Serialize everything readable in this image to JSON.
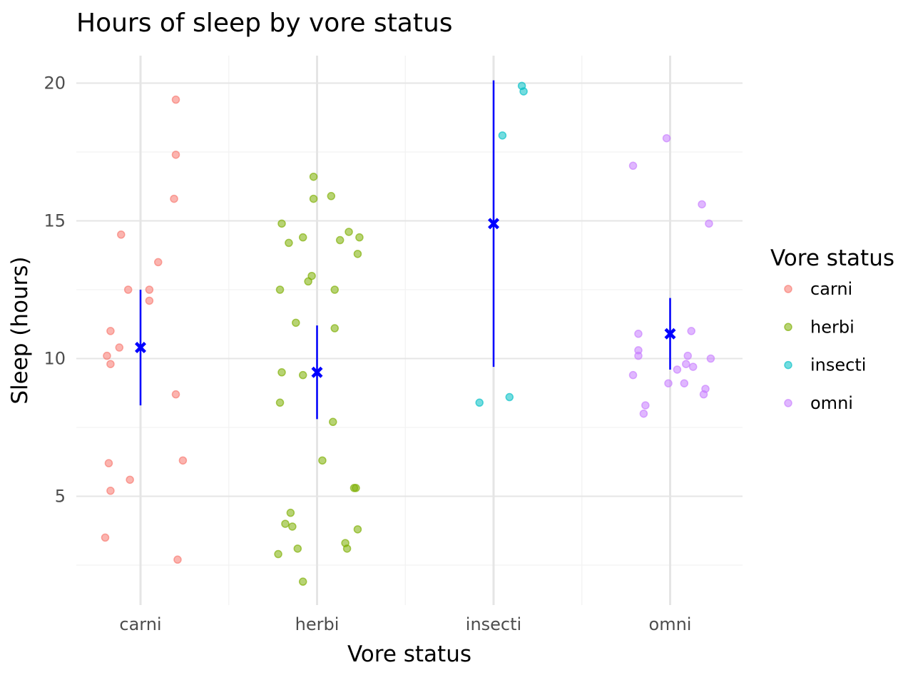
{
  "chart_data": {
    "type": "scatter",
    "title": "Hours of sleep by vore status",
    "xlabel": "Vore status",
    "ylabel": "Sleep (hours)",
    "categories": [
      "carni",
      "herbi",
      "insecti",
      "omni"
    ],
    "ylim": [
      1.0,
      21.0
    ],
    "yticks": [
      5,
      10,
      15,
      20
    ],
    "grid": true,
    "legend": {
      "title": "Vore status",
      "placement": "right",
      "entries": [
        "carni",
        "herbi",
        "insecti",
        "omni"
      ]
    },
    "colors": {
      "carni": "#f8766d",
      "herbi": "#7cae00",
      "insecti": "#00bfc4",
      "omni": "#c77cff",
      "summary": "#0000ff"
    },
    "series": [
      {
        "name": "carni",
        "points": [
          {
            "x": 0.2,
            "y": 19.4
          },
          {
            "x": 0.2,
            "y": 17.4
          },
          {
            "x": 0.19,
            "y": 15.8
          },
          {
            "x": -0.11,
            "y": 14.5
          },
          {
            "x": 0.1,
            "y": 13.5
          },
          {
            "x": -0.07,
            "y": 12.5
          },
          {
            "x": 0.05,
            "y": 12.5
          },
          {
            "x": 0.05,
            "y": 12.1
          },
          {
            "x": -0.17,
            "y": 11.0
          },
          {
            "x": -0.12,
            "y": 10.4
          },
          {
            "x": -0.19,
            "y": 10.1
          },
          {
            "x": -0.17,
            "y": 9.8
          },
          {
            "x": 0.2,
            "y": 8.7
          },
          {
            "x": -0.18,
            "y": 6.2
          },
          {
            "x": 0.24,
            "y": 6.3
          },
          {
            "x": -0.06,
            "y": 5.6
          },
          {
            "x": -0.17,
            "y": 5.2
          },
          {
            "x": -0.2,
            "y": 3.5
          },
          {
            "x": 0.21,
            "y": 2.7
          }
        ]
      },
      {
        "name": "herbi",
        "points": [
          {
            "x": -0.02,
            "y": 16.6
          },
          {
            "x": 0.08,
            "y": 15.9
          },
          {
            "x": -0.02,
            "y": 15.8
          },
          {
            "x": -0.2,
            "y": 14.9
          },
          {
            "x": 0.18,
            "y": 14.6
          },
          {
            "x": -0.08,
            "y": 14.4
          },
          {
            "x": 0.24,
            "y": 14.4
          },
          {
            "x": 0.13,
            "y": 14.3
          },
          {
            "x": -0.16,
            "y": 14.2
          },
          {
            "x": 0.23,
            "y": 13.8
          },
          {
            "x": -0.03,
            "y": 13.0
          },
          {
            "x": -0.05,
            "y": 12.8
          },
          {
            "x": -0.21,
            "y": 12.5
          },
          {
            "x": 0.1,
            "y": 12.5
          },
          {
            "x": -0.12,
            "y": 11.3
          },
          {
            "x": 0.1,
            "y": 11.1
          },
          {
            "x": -0.2,
            "y": 9.5
          },
          {
            "x": -0.08,
            "y": 9.4
          },
          {
            "x": -0.21,
            "y": 8.4
          },
          {
            "x": 0.09,
            "y": 7.7
          },
          {
            "x": 0.03,
            "y": 6.3
          },
          {
            "x": 0.21,
            "y": 5.3
          },
          {
            "x": 0.22,
            "y": 5.3
          },
          {
            "x": -0.15,
            "y": 4.4
          },
          {
            "x": -0.18,
            "y": 4.0
          },
          {
            "x": -0.14,
            "y": 3.9
          },
          {
            "x": 0.23,
            "y": 3.8
          },
          {
            "x": 0.16,
            "y": 3.3
          },
          {
            "x": 0.17,
            "y": 3.1
          },
          {
            "x": -0.11,
            "y": 3.1
          },
          {
            "x": -0.22,
            "y": 2.9
          },
          {
            "x": -0.08,
            "y": 1.9
          }
        ]
      },
      {
        "name": "insecti",
        "points": [
          {
            "x": 0.16,
            "y": 19.9
          },
          {
            "x": 0.17,
            "y": 19.7
          },
          {
            "x": 0.05,
            "y": 18.1
          },
          {
            "x": -0.08,
            "y": 8.4
          },
          {
            "x": 0.09,
            "y": 8.6
          }
        ]
      },
      {
        "name": "omni",
        "points": [
          {
            "x": -0.02,
            "y": 18.0
          },
          {
            "x": -0.21,
            "y": 17.0
          },
          {
            "x": 0.18,
            "y": 15.6
          },
          {
            "x": 0.22,
            "y": 14.9
          },
          {
            "x": -0.18,
            "y": 10.9
          },
          {
            "x": 0.12,
            "y": 11.0
          },
          {
            "x": -0.18,
            "y": 10.3
          },
          {
            "x": -0.18,
            "y": 10.1
          },
          {
            "x": 0.1,
            "y": 10.1
          },
          {
            "x": 0.23,
            "y": 10.0
          },
          {
            "x": 0.09,
            "y": 9.8
          },
          {
            "x": 0.13,
            "y": 9.7
          },
          {
            "x": 0.04,
            "y": 9.6
          },
          {
            "x": -0.21,
            "y": 9.4
          },
          {
            "x": -0.01,
            "y": 9.1
          },
          {
            "x": 0.08,
            "y": 9.1
          },
          {
            "x": 0.2,
            "y": 8.9
          },
          {
            "x": 0.19,
            "y": 8.7
          },
          {
            "x": -0.14,
            "y": 8.3
          },
          {
            "x": -0.15,
            "y": 8.0
          }
        ]
      }
    ],
    "summary": {
      "mean": [
        10.4,
        9.5,
        14.9,
        10.9
      ],
      "lower": [
        8.3,
        7.8,
        9.7,
        9.6
      ],
      "upper": [
        12.5,
        11.2,
        20.1,
        12.2
      ]
    }
  }
}
